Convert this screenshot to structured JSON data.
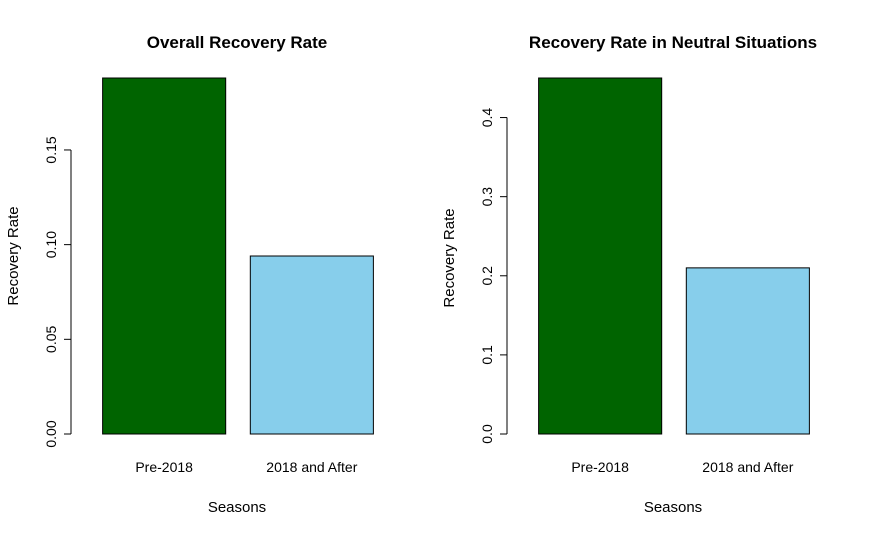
{
  "chart_data": [
    {
      "type": "bar",
      "title": "Overall Recovery Rate",
      "xlabel": "Seasons",
      "ylabel": "Recovery Rate",
      "categories": [
        "Pre-2018",
        "2018 and After"
      ],
      "values": [
        0.188,
        0.094
      ],
      "colors": [
        "#006400",
        "#87CEEB"
      ],
      "ylim": [
        0,
        0.188
      ],
      "yticks": [
        0.0,
        0.05,
        0.1,
        0.15
      ],
      "ytick_labels": [
        "0.00",
        "0.05",
        "0.10",
        "0.15"
      ],
      "grid": false,
      "legend": "none"
    },
    {
      "type": "bar",
      "title": "Recovery Rate in Neutral Situations",
      "xlabel": "Seasons",
      "ylabel": "Recovery Rate",
      "categories": [
        "Pre-2018",
        "2018 and After"
      ],
      "values": [
        0.45,
        0.21
      ],
      "colors": [
        "#006400",
        "#87CEEB"
      ],
      "ylim": [
        0,
        0.45
      ],
      "yticks": [
        0.0,
        0.1,
        0.2,
        0.3,
        0.4
      ],
      "ytick_labels": [
        "0.0",
        "0.1",
        "0.2",
        "0.3",
        "0.4"
      ],
      "grid": false,
      "legend": "none"
    }
  ]
}
